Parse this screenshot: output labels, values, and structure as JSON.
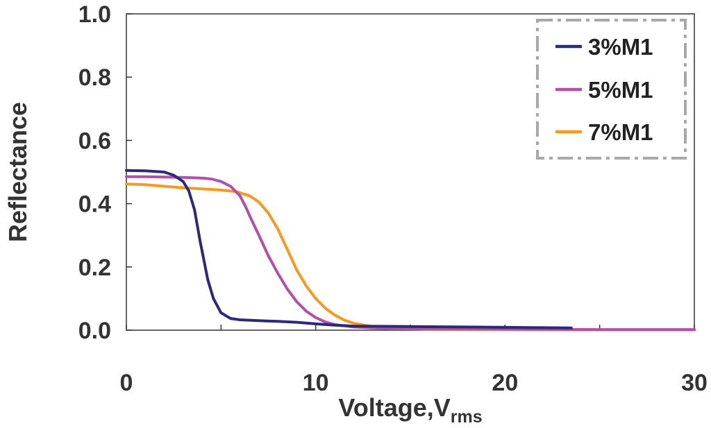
{
  "chart_data": {
    "type": "line",
    "title": "",
    "xlabel": "Voltage,",
    "xlabel_main": "Voltage,V",
    "xlabel_sub": "rms",
    "ylabel": "Reflectance",
    "xlim": [
      0,
      30
    ],
    "ylim": [
      0,
      1.0
    ],
    "x_ticks": [
      0,
      10,
      20,
      30
    ],
    "x_tick_labels": [
      "0",
      "10",
      "20",
      "30"
    ],
    "y_ticks": [
      0,
      0.2,
      0.4,
      0.6,
      0.8,
      1.0
    ],
    "y_tick_labels": [
      "0.0",
      "0.2",
      "0.4",
      "0.6",
      "0.8",
      "1.0"
    ],
    "legend_position": "top-right",
    "series": [
      {
        "name": "3%M1",
        "color": "#2b2a78",
        "x": [
          0,
          1,
          2,
          2.5,
          3,
          3.3,
          3.6,
          3.9,
          4.1,
          4.3,
          4.6,
          5.0,
          5.5,
          6,
          7,
          8,
          9,
          10,
          11,
          12,
          14,
          16,
          18,
          20,
          22,
          23.5
        ],
        "y": [
          0.505,
          0.504,
          0.5,
          0.49,
          0.47,
          0.44,
          0.38,
          0.28,
          0.22,
          0.16,
          0.1,
          0.055,
          0.037,
          0.033,
          0.03,
          0.028,
          0.025,
          0.02,
          0.016,
          0.013,
          0.012,
          0.011,
          0.01,
          0.009,
          0.008,
          0.007
        ]
      },
      {
        "name": "5%M1",
        "color": "#b050a8",
        "x": [
          0,
          1,
          2,
          3,
          4,
          4.5,
          5,
          5.5,
          6,
          6.3,
          6.6,
          7,
          7.5,
          8,
          8.5,
          9,
          9.5,
          10,
          10.5,
          11,
          12,
          13,
          14,
          16,
          20,
          25,
          30
        ],
        "y": [
          0.485,
          0.485,
          0.484,
          0.483,
          0.481,
          0.478,
          0.47,
          0.455,
          0.425,
          0.39,
          0.35,
          0.3,
          0.235,
          0.18,
          0.13,
          0.09,
          0.06,
          0.04,
          0.026,
          0.018,
          0.01,
          0.007,
          0.005,
          0.004,
          0.003,
          0.002,
          0.002
        ]
      },
      {
        "name": "7%M1",
        "color": "#f59a1e",
        "x": [
          0,
          1,
          2,
          3,
          4,
          5,
          5.8,
          6.5,
          7,
          7.5,
          8,
          8.5,
          9,
          9.5,
          10,
          10.5,
          11,
          11.5,
          12,
          13,
          14,
          16,
          20,
          25,
          30
        ],
        "y": [
          0.462,
          0.46,
          0.455,
          0.45,
          0.447,
          0.443,
          0.438,
          0.425,
          0.405,
          0.37,
          0.32,
          0.255,
          0.19,
          0.14,
          0.1,
          0.07,
          0.048,
          0.032,
          0.022,
          0.011,
          0.006,
          0.003,
          0.002,
          0.001,
          0.001
        ]
      }
    ]
  }
}
